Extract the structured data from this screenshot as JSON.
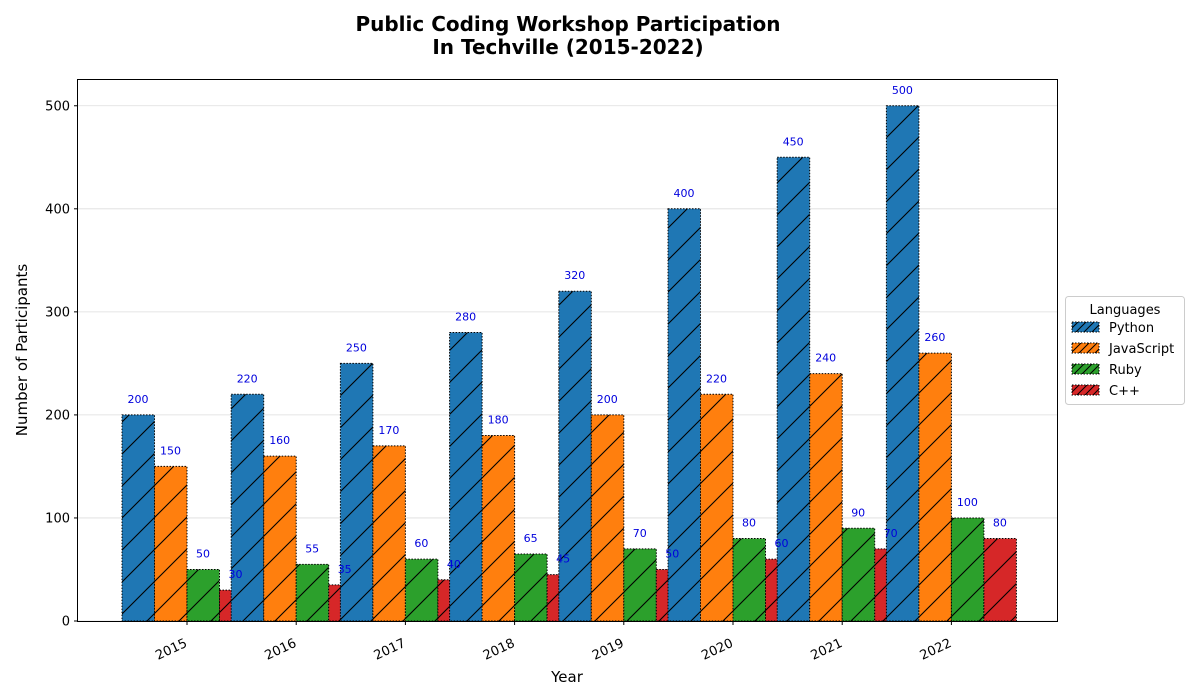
{
  "chart_data": {
    "type": "bar",
    "title_lines": [
      "Public Coding Workshop Participation",
      "In Techville (2015-2022)"
    ],
    "xlabel": "Year",
    "ylabel": "Number of Participants",
    "categories": [
      "2015",
      "2016",
      "2017",
      "2018",
      "2019",
      "2020",
      "2021",
      "2022"
    ],
    "ylim": [
      0,
      525
    ],
    "yticks": [
      0,
      100,
      200,
      300,
      400,
      500
    ],
    "grid": "horizontal",
    "legend": {
      "title": "Languages",
      "placement": "right-center"
    },
    "series": [
      {
        "name": "Python",
        "color": "#1f77b4",
        "values": [
          200,
          220,
          250,
          280,
          320,
          400,
          450,
          500
        ]
      },
      {
        "name": "JavaScript",
        "color": "#ff7f0e",
        "values": [
          150,
          160,
          170,
          180,
          200,
          220,
          240,
          260
        ]
      },
      {
        "name": "Ruby",
        "color": "#2ca02c",
        "values": [
          50,
          55,
          60,
          65,
          70,
          80,
          90,
          100
        ]
      },
      {
        "name": "C++",
        "color": "#d62728",
        "values": [
          30,
          35,
          40,
          45,
          50,
          60,
          70,
          80
        ]
      }
    ]
  }
}
